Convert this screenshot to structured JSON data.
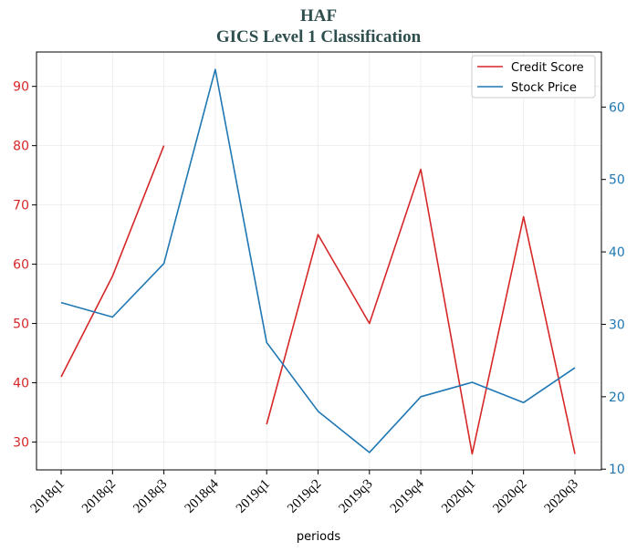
{
  "chart_data": {
    "type": "line",
    "title": "HAF",
    "subtitle": "GICS Level 1 Classification",
    "xlabel": "periods",
    "categories": [
      "2018q1",
      "2018q2",
      "2018q3",
      "2018q4",
      "2019q1",
      "2019q2",
      "2019q3",
      "2019q4",
      "2020q1",
      "2020q2",
      "2020q3"
    ],
    "left_axis": {
      "ylim": [
        25.3,
        95.8
      ],
      "ticks": [
        30,
        40,
        50,
        60,
        70,
        80,
        90
      ],
      "color": "#d62728"
    },
    "right_axis": {
      "ylim": [
        9.9,
        67.6
      ],
      "ticks": [
        10,
        20,
        30,
        40,
        50,
        60
      ],
      "color": "#1f77b4"
    },
    "series": [
      {
        "name": "Credit Score",
        "axis": "left",
        "color": "#d62728",
        "values": [
          41,
          58,
          80,
          null,
          33,
          65,
          50,
          76,
          28,
          68,
          28
        ]
      },
      {
        "name": "Stock Price",
        "axis": "right",
        "color": "#1f77b4",
        "values": [
          33.0,
          31.0,
          38.4,
          65.2,
          27.5,
          18.0,
          12.3,
          20.0,
          22.0,
          19.2,
          24.0
        ]
      }
    ],
    "grid": true,
    "legend_position": "top-right"
  }
}
